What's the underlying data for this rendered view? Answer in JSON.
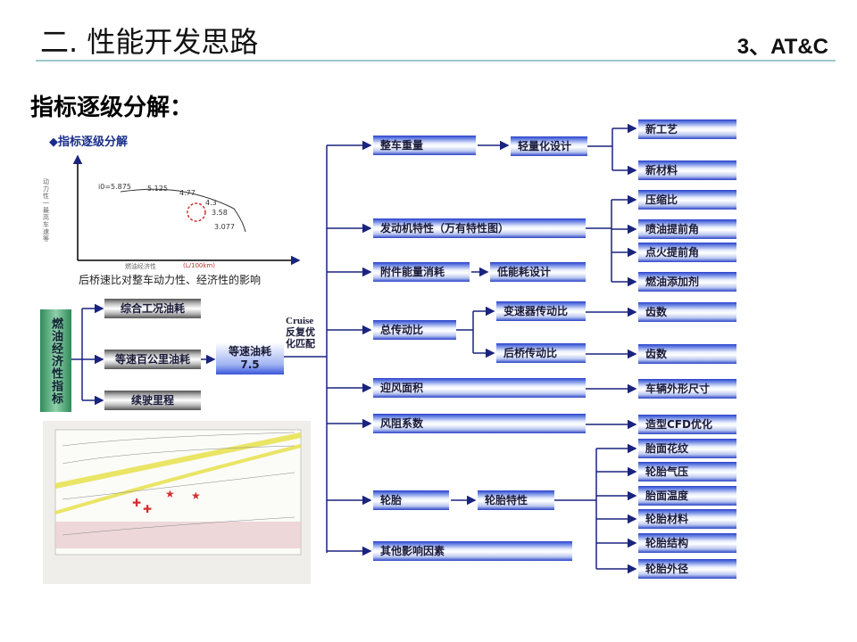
{
  "header": {
    "title": "二. 性能开发思路",
    "section": "3、AT&C",
    "subtitle": "指标逐级分解："
  },
  "colors": {
    "box_blue": "#2c44c8",
    "rule": "#9cc9c9",
    "green": "#2f8a5a",
    "line": "#1a237e",
    "marker": "#d03030"
  },
  "chart": {
    "title": "◆指标逐级分解",
    "ylabel": "动力性 一最高车速等",
    "xlabel": "燃油经济性",
    "xunit": "(L/100km)",
    "points": [
      "i0=5.875",
      "5.125",
      "4.77",
      "4.3",
      "3.58",
      "3.077"
    ],
    "caption": "后桥速比对整车动力性、经济性的影响"
  },
  "left": {
    "green_label": "燃油经济性指标",
    "items": [
      "综合工况油耗",
      "等速百公里油耗",
      "续驶里程"
    ],
    "speed_label": "等速油耗",
    "speed_value": "7.5",
    "cruise": "Cruise",
    "cruise_note1": "反复优",
    "cruise_note2": "化匹配"
  },
  "mid": [
    "整车重量",
    "轻量化设计",
    "发动机特性（万有特性图）",
    "附件能量消耗",
    "低能耗设计",
    "总传动比",
    "变速器传动比",
    "后桥传动比",
    "迎风面积",
    "风阻系数",
    "轮胎",
    "轮胎特性",
    "其他影响因素"
  ],
  "right": [
    "新工艺",
    "新材料",
    "压缩比",
    "喷油提前角",
    "点火提前角",
    "燃油添加剂",
    "齿数",
    "齿数",
    "车辆外形尺寸",
    "造型CFD优化",
    "胎面花纹",
    "轮胎气压",
    "胎面温度",
    "轮胎材料",
    "轮胎结构",
    "轮胎外径"
  ]
}
